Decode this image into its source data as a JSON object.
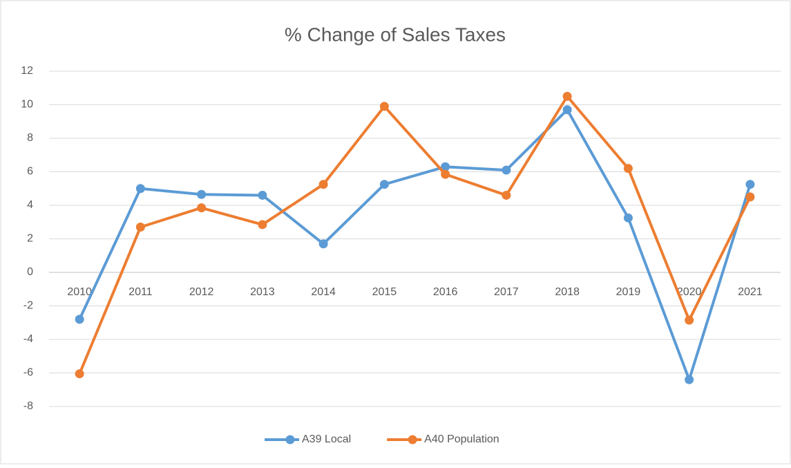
{
  "chart_data": {
    "type": "line",
    "title": "% Change of Sales Taxes",
    "categories": [
      "2010",
      "2011",
      "2012",
      "2013",
      "2014",
      "2015",
      "2016",
      "2017",
      "2018",
      "2019",
      "2020",
      "2021"
    ],
    "series": [
      {
        "name": "A39 Local",
        "color": "#5b9bd5",
        "values": [
          -2.8,
          5.0,
          4.65,
          4.6,
          1.7,
          5.25,
          6.3,
          6.1,
          9.7,
          3.25,
          -6.4,
          5.25
        ]
      },
      {
        "name": "A40 Population",
        "color": "#ed7d31",
        "values": [
          -6.05,
          2.7,
          3.85,
          2.85,
          5.25,
          9.9,
          5.85,
          4.6,
          10.5,
          6.2,
          -2.85,
          4.5
        ]
      }
    ],
    "ylim": [
      -8,
      12
    ],
    "yticks": [
      -8,
      -6,
      -4,
      -2,
      0,
      2,
      4,
      6,
      8,
      10,
      12
    ],
    "grid": true,
    "legend": "bottom"
  }
}
